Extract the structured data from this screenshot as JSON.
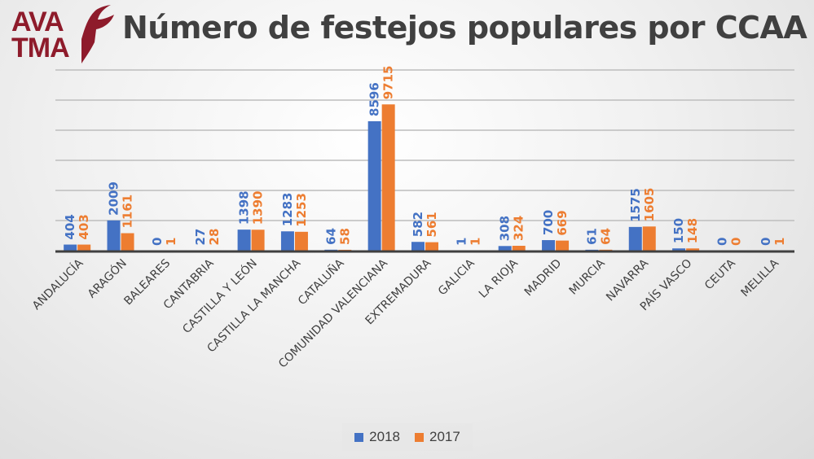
{
  "brand": {
    "logo_line1": "AVA",
    "logo_line2": "TMA",
    "logo_color": "#8e1b2b"
  },
  "chart_data": {
    "type": "bar",
    "title": "Número de festejos populares por CCAA",
    "xlabel": "",
    "ylabel": "",
    "ylim": [
      0,
      12000
    ],
    "ytick_step": 2000,
    "ytick_labels_visible": false,
    "grid": true,
    "legend_position": "bottom",
    "categories": [
      "ANDALUCÍA",
      "ARAGÓN",
      "BALEARES",
      "CANTABRIA",
      "CASTILLA Y LEÓN",
      "CASTILLA LA MANCHA",
      "CATALUÑA",
      "COMUNIDAD VALENCIANA",
      "EXTREMADURA",
      "GALICIA",
      "LA RIOJA",
      "MADRID",
      "MURCIA",
      "NAVARRA",
      "PAÍS VASCO",
      "CEUTA",
      "MELILLA"
    ],
    "series": [
      {
        "name": "2018",
        "color": "#4472c4",
        "values": [
          404,
          2009,
          0,
          27,
          1398,
          1283,
          64,
          8596,
          582,
          1,
          308,
          700,
          61,
          1575,
          150,
          0,
          0
        ]
      },
      {
        "name": "2017",
        "color": "#ed7d31",
        "values": [
          403,
          1161,
          1,
          28,
          1390,
          1253,
          58,
          9715,
          561,
          1,
          324,
          669,
          64,
          1605,
          148,
          0,
          1
        ]
      }
    ]
  }
}
